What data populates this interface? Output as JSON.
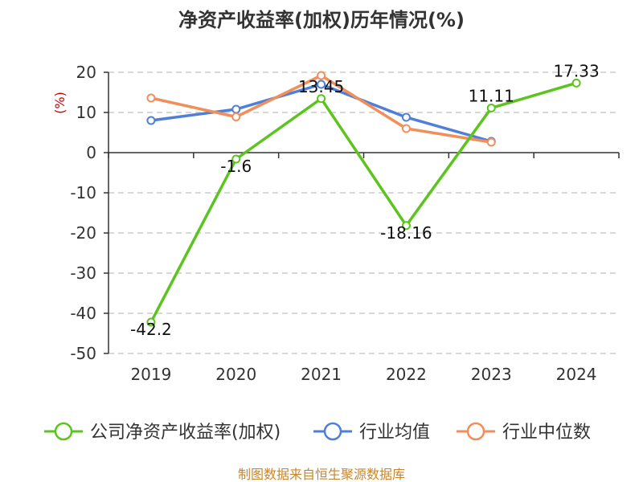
{
  "chart_data": {
    "type": "line",
    "title": "净资产收益率(加权)历年情况(%)",
    "ylabel": "(%)",
    "xlabel": "",
    "categories": [
      "2019",
      "2020",
      "2021",
      "2022",
      "2023",
      "2024"
    ],
    "ylim": [
      -50,
      20
    ],
    "yticks": [
      20,
      10,
      0,
      -10,
      -20,
      -30,
      -40,
      -50
    ],
    "grid": true,
    "legend_position": "bottom",
    "series": [
      {
        "name": "公司净资产收益率(加权)",
        "color": "#5cc41e",
        "values": [
          -42.2,
          -1.6,
          13.45,
          -18.16,
          11.11,
          17.33
        ],
        "labels": [
          "-42.2",
          "-1.6",
          "13.45",
          "-18.16",
          "11.11",
          "17.33"
        ]
      },
      {
        "name": "行业均值",
        "color": "#4f7fd8",
        "values": [
          8.0,
          10.8,
          17.0,
          8.8,
          2.8,
          null
        ]
      },
      {
        "name": "行业中位数",
        "color": "#f28e5a",
        "values": [
          13.6,
          8.9,
          19.2,
          6.0,
          2.6,
          null
        ]
      }
    ],
    "source": "制图数据来自恒生聚源数据库"
  }
}
